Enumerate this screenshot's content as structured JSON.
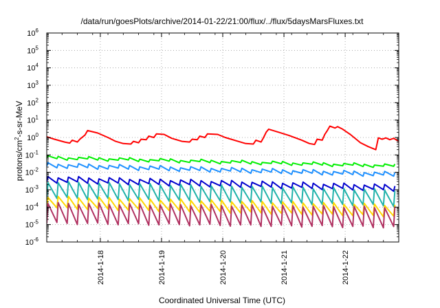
{
  "chart_data": {
    "type": "line",
    "title": "/data/run/goesPlots/archive/2014-01-22/21:00/flux/../flux/5daysMarsFluxes.txt",
    "xlabel": "Coordinated Universal Time (UTC)",
    "ylabel": {
      "base": "protons/cm",
      "sup": "2",
      "rest": "-s-sr-MeV"
    },
    "y_scale": "log",
    "ylim": [
      1e-06,
      1000000.0
    ],
    "y_ticks": [
      {
        "base": "10",
        "exp": "6",
        "value": 1000000.0
      },
      {
        "base": "10",
        "exp": "5",
        "value": 100000.0
      },
      {
        "base": "10",
        "exp": "4",
        "value": 10000.0
      },
      {
        "base": "10",
        "exp": "3",
        "value": 1000.0
      },
      {
        "base": "10",
        "exp": "2",
        "value": 100.0
      },
      {
        "base": "10",
        "exp": "1",
        "value": 10.0
      },
      {
        "base": "10",
        "exp": "0",
        "value": 1.0
      },
      {
        "base": "10",
        "exp": "-1",
        "value": 0.1
      },
      {
        "base": "10",
        "exp": "-2",
        "value": 0.01
      },
      {
        "base": "10",
        "exp": "-3",
        "value": 0.001
      },
      {
        "base": "10",
        "exp": "-4",
        "value": 0.0001
      },
      {
        "base": "10",
        "exp": "-5",
        "value": 1e-05
      },
      {
        "base": "10",
        "exp": "-6",
        "value": 1e-06
      }
    ],
    "x_start": "2014-01-17T03:00",
    "x_end": "2014-01-22T21:00",
    "x_ticks": [
      {
        "label": "2014-1-18",
        "value": "2014-01-18T00:00"
      },
      {
        "label": "2014-1-19",
        "value": "2014-01-19T00:00"
      },
      {
        "label": "2014-1-20",
        "value": "2014-01-20T00:00"
      },
      {
        "label": "2014-1-21",
        "value": "2014-01-21T00:00"
      },
      {
        "label": "2014-1-22",
        "value": "2014-01-22T00:00"
      }
    ],
    "grid": "dotted at major ticks",
    "series": [
      {
        "color": "#ff0000",
        "points": [
          [
            "2014-01-17T03:00",
            1.1
          ],
          [
            "2014-01-17T06:00",
            0.8
          ],
          [
            "2014-01-17T10:00",
            0.55
          ],
          [
            "2014-01-17T12:00",
            0.48
          ],
          [
            "2014-01-17T13:00",
            0.7
          ],
          [
            "2014-01-17T15:00",
            0.55
          ],
          [
            "2014-01-17T16:00",
            0.8
          ],
          [
            "2014-01-17T18:00",
            1.4
          ],
          [
            "2014-01-17T19:00",
            2.5
          ],
          [
            "2014-01-17T23:00",
            1.8
          ],
          [
            "2014-01-18T03:00",
            1.0
          ],
          [
            "2014-01-18T06:00",
            0.6
          ],
          [
            "2014-01-18T09:00",
            0.45
          ],
          [
            "2014-01-18T12:00",
            0.42
          ],
          [
            "2014-01-18T13:00",
            0.6
          ],
          [
            "2014-01-18T15:00",
            0.5
          ],
          [
            "2014-01-18T16:00",
            0.8
          ],
          [
            "2014-01-18T18:00",
            0.75
          ],
          [
            "2014-01-18T19:00",
            1.2
          ],
          [
            "2014-01-18T21:00",
            1.0
          ],
          [
            "2014-01-18T22:00",
            1.6
          ],
          [
            "2014-01-19T01:00",
            1.5
          ],
          [
            "2014-01-19T04:00",
            0.9
          ],
          [
            "2014-01-19T08:00",
            0.6
          ],
          [
            "2014-01-19T11:00",
            0.55
          ],
          [
            "2014-01-19T12:00",
            0.8
          ],
          [
            "2014-01-19T14:00",
            0.75
          ],
          [
            "2014-01-19T15:00",
            1.2
          ],
          [
            "2014-01-19T17:00",
            1.0
          ],
          [
            "2014-01-19T18:00",
            1.6
          ],
          [
            "2014-01-19T22:00",
            1.5
          ],
          [
            "2014-01-20T01:00",
            1.0
          ],
          [
            "2014-01-20T06:00",
            0.6
          ],
          [
            "2014-01-20T09:00",
            0.45
          ],
          [
            "2014-01-20T12:00",
            0.42
          ],
          [
            "2014-01-20T13:00",
            0.7
          ],
          [
            "2014-01-20T15:00",
            0.55
          ],
          [
            "2014-01-20T16:00",
            1.0
          ],
          [
            "2014-01-20T17:00",
            2.0
          ],
          [
            "2014-01-20T18:00",
            3.0
          ],
          [
            "2014-01-20T22:00",
            2.0
          ],
          [
            "2014-01-21T02:00",
            1.3
          ],
          [
            "2014-01-21T07:00",
            0.7
          ],
          [
            "2014-01-21T10:00",
            0.45
          ],
          [
            "2014-01-21T12:00",
            0.4
          ],
          [
            "2014-01-21T13:00",
            0.8
          ],
          [
            "2014-01-21T15:00",
            0.7
          ],
          [
            "2014-01-21T16:00",
            1.5
          ],
          [
            "2014-01-21T17:00",
            2.5
          ],
          [
            "2014-01-21T18:00",
            4.5
          ],
          [
            "2014-01-21T20:00",
            3.5
          ],
          [
            "2014-01-21T21:00",
            4.2
          ],
          [
            "2014-01-21T23:00",
            3.0
          ],
          [
            "2014-01-22T02:00",
            1.5
          ],
          [
            "2014-01-22T06:00",
            0.5
          ],
          [
            "2014-01-22T09:00",
            0.3
          ],
          [
            "2014-01-22T12:00",
            0.2
          ],
          [
            "2014-01-22T13:00",
            0.95
          ],
          [
            "2014-01-22T14:30",
            0.8
          ],
          [
            "2014-01-22T16:00",
            0.95
          ],
          [
            "2014-01-22T17:30",
            0.75
          ],
          [
            "2014-01-22T19:00",
            0.9
          ],
          [
            "2014-01-22T21:00",
            0.6
          ]
        ]
      },
      {
        "color": "#00ee00",
        "sawtooth": {
          "start_low": 0.06,
          "end_low": 0.02,
          "ratio": 1.35,
          "period_h": 4
        }
      },
      {
        "color": "#1e90ff",
        "sawtooth": {
          "start_low": 0.02,
          "end_low": 0.006,
          "ratio": 1.6,
          "period_h": 4
        }
      },
      {
        "color": "#0000cd",
        "sawtooth": {
          "start_low": 0.0028,
          "end_low": 0.0009,
          "ratio": 2.0,
          "period_h": 4
        }
      },
      {
        "color": "#20b2aa",
        "sawtooth": {
          "start_low": 0.00035,
          "end_low": 0.00012,
          "ratio": 8.0,
          "period_h": 4
        }
      },
      {
        "color": "#ffd700",
        "sawtooth": {
          "start_low": 9e-05,
          "end_low": 3e-05,
          "ratio": 4.5,
          "period_h": 4
        }
      },
      {
        "color": "#b03060",
        "sawtooth": {
          "start_low": 1.2e-05,
          "end_low": 7e-06,
          "ratio": 14.0,
          "period_h": 4
        }
      }
    ]
  }
}
